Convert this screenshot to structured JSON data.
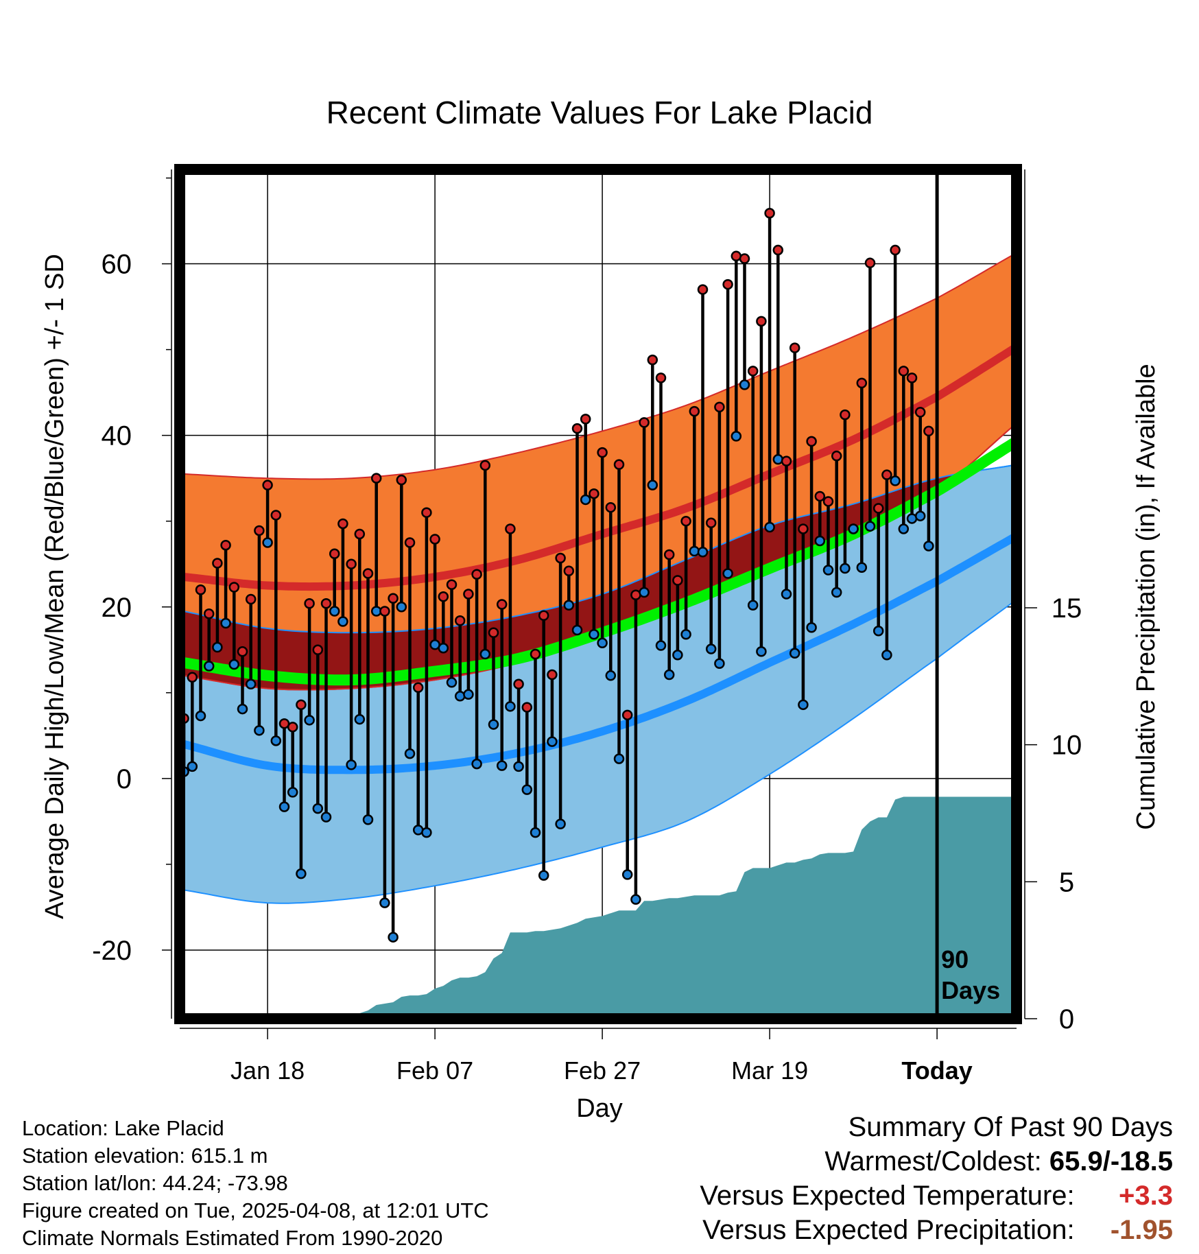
{
  "chart_data": {
    "type": "line",
    "title": "Recent Climate Values For Lake Placid",
    "xlabel": "Day",
    "ylabel": "Average Daily High/Low/Mean (Red/Blue/Green) +/- 1 SD",
    "y2label": "Cumulative Precipitation (in), If Available",
    "ylim": [
      -28,
      71
    ],
    "y2lim": [
      0,
      31
    ],
    "yticks": [
      -20,
      0,
      20,
      40,
      60
    ],
    "y2ticks": [
      0,
      5,
      10,
      15
    ],
    "xlim": [
      -0.5,
      99.5
    ],
    "xticks": [
      {
        "day": 10,
        "label": "Jan 18"
      },
      {
        "day": 30,
        "label": "Feb 07"
      },
      {
        "day": 50,
        "label": "Feb 27"
      },
      {
        "day": 70,
        "label": "Mar 19"
      },
      {
        "day": 90,
        "label": "Today"
      }
    ],
    "today_marker": {
      "day": 90,
      "label_top": "90",
      "label_bottom": "Days"
    },
    "normals": {
      "days": [
        0,
        10,
        20,
        30,
        40,
        50,
        60,
        70,
        80,
        90,
        99
      ],
      "high_mean": [
        23.5,
        22.5,
        22.5,
        23.5,
        25.5,
        28.5,
        31.5,
        35.5,
        39.5,
        44.5,
        50
      ],
      "high_upper": [
        35.5,
        35,
        35,
        36,
        38,
        40.5,
        43.5,
        47.5,
        51.5,
        56,
        61
      ],
      "high_lower": [
        12,
        10.5,
        10.5,
        11.5,
        13.5,
        16.5,
        20,
        24.5,
        28.5,
        33.5,
        41
      ],
      "low_mean": [
        4,
        1.5,
        1,
        1.5,
        3,
        5.5,
        9,
        13.5,
        18,
        23,
        28
      ],
      "low_upper": [
        19.5,
        17.5,
        17,
        17.5,
        19,
        21.5,
        25.5,
        29.5,
        32,
        35,
        36.5
      ],
      "low_lower": [
        -13,
        -14.5,
        -14,
        -12.5,
        -10.5,
        -8,
        -5,
        0.5,
        7,
        14,
        20.5
      ],
      "avg_mean": [
        13.5,
        12,
        11.5,
        12.5,
        14,
        17,
        20.5,
        24.5,
        28.5,
        33.5,
        39
      ]
    },
    "series": [
      {
        "name": "Daily High",
        "values": [
          7,
          11.8,
          22,
          19.2,
          25.1,
          27.2,
          22.3,
          14.8,
          20.9,
          28.9,
          34.2,
          30.7,
          6.4,
          6.0,
          8.6,
          20.4,
          15.0,
          20.4,
          26.2,
          29.7,
          25.0,
          28.5,
          23.9,
          35.0,
          19.5,
          21.0,
          34.8,
          27.5,
          10.6,
          31.0,
          27.9,
          21.2,
          22.6,
          18.4,
          21.5,
          23.8,
          36.5,
          17.0,
          20.3,
          29.1,
          11.0,
          8.3,
          14.5,
          19.0,
          12.1,
          25.7,
          24.2,
          40.8,
          41.9,
          33.2,
          38.0,
          31.6,
          36.6,
          7.4,
          21.4,
          41.5,
          48.8,
          46.7,
          26.1,
          23.1,
          30.0,
          42.8,
          57.0,
          29.8,
          43.3,
          57.6,
          60.9,
          60.6,
          47.5,
          53.3,
          65.9,
          61.6,
          37.0,
          50.2,
          29.1,
          39.3,
          32.9,
          32.3,
          37.6,
          42.4,
          29.1,
          46.1,
          60.1,
          31.5,
          35.4,
          61.6,
          47.5,
          46.7,
          42.7,
          40.5
        ]
      },
      {
        "name": "Daily Low",
        "values": [
          0.8,
          1.4,
          7.3,
          13.1,
          15.3,
          18.1,
          13.3,
          8.1,
          11.0,
          5.6,
          27.5,
          4.4,
          -3.3,
          -1.6,
          -11.1,
          6.8,
          -3.5,
          -4.5,
          19.5,
          18.3,
          1.6,
          6.9,
          -4.8,
          19.5,
          -14.5,
          -18.5,
          20.0,
          2.9,
          -6.0,
          -6.3,
          15.6,
          15.2,
          11.2,
          9.6,
          9.8,
          1.7,
          14.5,
          6.3,
          1.5,
          8.4,
          1.4,
          -1.3,
          -6.3,
          -11.3,
          4.3,
          -5.3,
          20.2,
          17.3,
          32.5,
          16.8,
          15.8,
          12.0,
          2.3,
          -11.2,
          -14.1,
          21.7,
          34.2,
          15.5,
          12.1,
          14.4,
          16.8,
          26.5,
          26.4,
          15.1,
          13.4,
          23.9,
          39.9,
          45.9,
          20.2,
          14.8,
          29.3,
          37.2,
          21.5,
          14.6,
          8.6,
          17.6,
          27.7,
          24.3,
          21.7,
          24.5,
          29.1,
          24.6,
          29.4,
          17.2,
          14.4,
          34.7,
          29.1,
          30.3,
          30.6,
          27.1
        ]
      },
      {
        "name": "Cumulative Precipitation",
        "days": [
          0,
          19,
          20,
          21,
          22,
          23,
          24,
          25,
          26,
          27,
          28,
          29,
          30,
          31,
          32,
          33,
          34,
          35,
          36,
          37,
          38,
          39,
          40,
          41,
          42,
          43,
          44,
          45,
          46,
          47,
          48,
          49,
          50,
          51,
          52,
          53,
          54,
          55,
          56,
          57,
          58,
          59,
          60,
          61,
          62,
          63,
          64,
          65,
          66,
          67,
          68,
          69,
          70,
          71,
          72,
          73,
          74,
          75,
          76,
          77,
          78,
          79,
          80,
          81,
          82,
          83,
          84,
          85,
          86,
          87,
          88,
          89,
          90,
          99
        ],
        "values": [
          0,
          0,
          0.1,
          0.2,
          0.3,
          0.5,
          0.55,
          0.6,
          0.8,
          0.85,
          0.85,
          0.9,
          1.1,
          1.2,
          1.4,
          1.5,
          1.5,
          1.55,
          1.7,
          2.2,
          2.4,
          3.15,
          3.15,
          3.15,
          3.2,
          3.2,
          3.25,
          3.3,
          3.4,
          3.5,
          3.65,
          3.7,
          3.75,
          3.85,
          3.95,
          3.95,
          3.95,
          4.3,
          4.3,
          4.35,
          4.4,
          4.4,
          4.45,
          4.5,
          4.5,
          4.5,
          4.5,
          4.6,
          4.65,
          5.35,
          5.5,
          5.5,
          5.5,
          5.6,
          5.7,
          5.7,
          5.8,
          5.85,
          6.0,
          6.05,
          6.05,
          6.05,
          6.1,
          6.9,
          7.2,
          7.35,
          7.35,
          8.0,
          8.1,
          8.1,
          8.1,
          8.1,
          8.1,
          8.1
        ]
      }
    ]
  },
  "info": {
    "location": "Location: Lake Placid",
    "elevation": "Station elevation: 615.1 m",
    "latlon": "Station lat/lon: 44.24; -73.98",
    "created": "Figure created on Tue, 2025-04-08, at 12:01 UTC",
    "normals": "Climate Normals Estimated From 1990-2020"
  },
  "summary": {
    "title": "Summary Of Past 90 Days",
    "warm_cold_label": "Warmest/Coldest:",
    "warm_cold_value": "65.9/-18.5",
    "temp_label": "Versus Expected Temperature:",
    "temp_value": "+3.3",
    "precip_label": "Versus Expected Precipitation:",
    "precip_value": "-1.95"
  },
  "colors": {
    "high_band": "#f47a30",
    "high_line": "#d42a2a",
    "low_band": "#85c1e6",
    "low_line": "#1e90ff",
    "overlap": "#931515",
    "mean_line": "#00f000",
    "precip": "#4a9ba5",
    "high_dot": "#d42a2a",
    "low_dot": "#1e7fd4"
  }
}
